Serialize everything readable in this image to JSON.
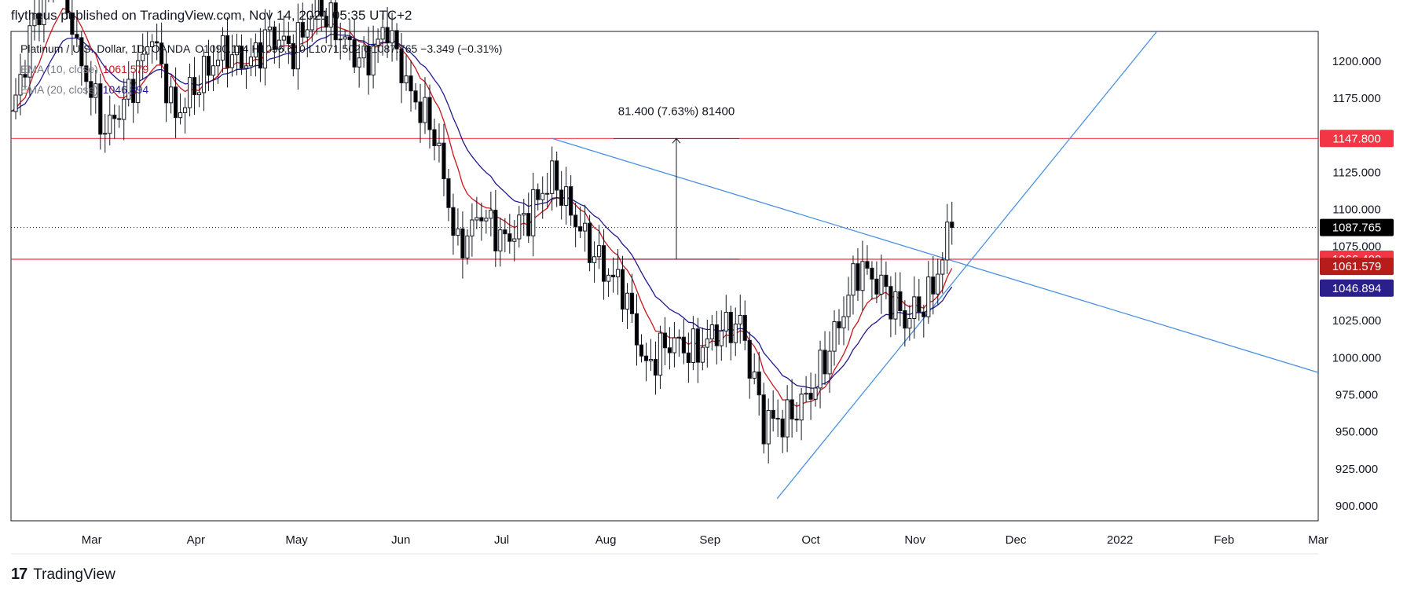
{
  "header": {
    "text": "flytheus published on TradingView.com, Nov 14, 2021 05:35 UTC+2"
  },
  "footer": {
    "logo": "17",
    "brand": "TradingView"
  },
  "legend": {
    "symbol": "Platinum / U.S. Dollar, 1D, OANDA",
    "ohlc": "O1090.114  H1096.610  L1071.502  C1087.765  −3.349 (−0.31%)",
    "ema10_label": "EMA (10, close)",
    "ema10_value": "1061.579",
    "ema20_label": "EMA (20, close)",
    "ema20_value": "1046.894"
  },
  "colors": {
    "up": "#ffffff",
    "down": "#000000",
    "ema10": "#c8161d",
    "ema20": "#1f1a8c",
    "trend": "#4a90e2",
    "hline": "#f23645",
    "last_price_bg": "#000000",
    "ema10_bg": "#b71c1c",
    "ema20_bg": "#2b1f8c",
    "hline_bg": "#f23645"
  },
  "chart_data": {
    "type": "candlestick",
    "title": "Platinum / U.S. Dollar, 1D, OANDA",
    "ylim": [
      890,
      1220
    ],
    "y_ticks": [
      "900.000",
      "925.000",
      "950.000",
      "975.000",
      "1000.000",
      "1025.000",
      "1050.000",
      "1075.000",
      "1100.000",
      "1125.000",
      "1150.000",
      "1175.000",
      "1200.000"
    ],
    "x_ticks": [
      {
        "label": "Mar",
        "date": "2021-03-01"
      },
      {
        "label": "Apr",
        "date": "2021-04-01"
      },
      {
        "label": "May",
        "date": "2021-05-01"
      },
      {
        "label": "Jun",
        "date": "2021-06-01"
      },
      {
        "label": "Jul",
        "date": "2021-07-01"
      },
      {
        "label": "Aug",
        "date": "2021-08-01"
      },
      {
        "label": "Sep",
        "date": "2021-09-01"
      },
      {
        "label": "Oct",
        "date": "2021-10-01"
      },
      {
        "label": "Nov",
        "date": "2021-11-01"
      },
      {
        "label": "Dec",
        "date": "2021-12-01"
      },
      {
        "label": "2022",
        "date": "2022-01-01"
      },
      {
        "label": "Feb",
        "date": "2022-02-01"
      },
      {
        "label": "Mar",
        "date": "2022-03-01"
      }
    ],
    "x_range": [
      "2021-02-05",
      "2022-03-01"
    ],
    "weekly_closes": [
      {
        "date": "2021-02-05",
        "value": 1160
      },
      {
        "date": "2021-02-12",
        "value": 1230
      },
      {
        "date": "2021-02-19",
        "value": 1262
      },
      {
        "date": "2021-02-26",
        "value": 1200
      },
      {
        "date": "2021-03-05",
        "value": 1150
      },
      {
        "date": "2021-03-12",
        "value": 1180
      },
      {
        "date": "2021-03-19",
        "value": 1215
      },
      {
        "date": "2021-03-26",
        "value": 1165
      },
      {
        "date": "2021-04-02",
        "value": 1185
      },
      {
        "date": "2021-04-09",
        "value": 1210
      },
      {
        "date": "2021-04-16",
        "value": 1195
      },
      {
        "date": "2021-04-23",
        "value": 1220
      },
      {
        "date": "2021-04-30",
        "value": 1205
      },
      {
        "date": "2021-05-07",
        "value": 1240
      },
      {
        "date": "2021-05-14",
        "value": 1215
      },
      {
        "date": "2021-05-21",
        "value": 1200
      },
      {
        "date": "2021-05-28",
        "value": 1220
      },
      {
        "date": "2021-06-04",
        "value": 1180
      },
      {
        "date": "2021-06-11",
        "value": 1150
      },
      {
        "date": "2021-06-18",
        "value": 1075
      },
      {
        "date": "2021-06-25",
        "value": 1095
      },
      {
        "date": "2021-07-02",
        "value": 1080
      },
      {
        "date": "2021-07-09",
        "value": 1095
      },
      {
        "date": "2021-07-16",
        "value": 1125
      },
      {
        "date": "2021-07-23",
        "value": 1090
      },
      {
        "date": "2021-07-30",
        "value": 1065
      },
      {
        "date": "2021-08-06",
        "value": 1045
      },
      {
        "date": "2021-08-13",
        "value": 995
      },
      {
        "date": "2021-08-20",
        "value": 1010
      },
      {
        "date": "2021-08-27",
        "value": 1005
      },
      {
        "date": "2021-09-03",
        "value": 1015
      },
      {
        "date": "2021-09-10",
        "value": 1025
      },
      {
        "date": "2021-09-17",
        "value": 955
      },
      {
        "date": "2021-09-24",
        "value": 960
      },
      {
        "date": "2021-10-01",
        "value": 975
      },
      {
        "date": "2021-10-08",
        "value": 1015
      },
      {
        "date": "2021-10-15",
        "value": 1060
      },
      {
        "date": "2021-10-22",
        "value": 1050
      },
      {
        "date": "2021-10-29",
        "value": 1025
      },
      {
        "date": "2021-11-05",
        "value": 1040
      },
      {
        "date": "2021-11-12",
        "value": 1087.765
      }
    ],
    "last": {
      "open": 1090.114,
      "high": 1096.61,
      "low": 1071.502,
      "close": 1087.765,
      "change": -3.349,
      "change_pct": -0.31
    },
    "ema10": 1061.579,
    "ema20": 1046.894,
    "horizontal_lines": [
      1147.8,
      1066.4
    ],
    "trendlines": [
      {
        "from": {
          "date": "2021-07-16",
          "value": 1147.8
        },
        "to": {
          "date": "2022-03-01",
          "value": 990
        }
      },
      {
        "from": {
          "date": "2021-09-21",
          "value": 905
        },
        "to": {
          "date": "2022-01-12",
          "value": 1220
        }
      }
    ],
    "measure": {
      "label": "81.400 (7.63%) 81400",
      "from": 1066.4,
      "to": 1147.8,
      "date": "2021-08-22"
    },
    "price_labels": [
      {
        "value": 1147.8,
        "text": "1147.800",
        "color": "#f23645"
      },
      {
        "value": 1087.765,
        "text": "1087.765",
        "color": "#000000"
      },
      {
        "value": 1066.4,
        "text": "1066.400",
        "color": "#f23645"
      },
      {
        "value": 1061.579,
        "text": "1061.579",
        "color": "#b71c1c"
      },
      {
        "value": 1046.894,
        "text": "1046.894",
        "color": "#2b1f8c"
      }
    ]
  }
}
